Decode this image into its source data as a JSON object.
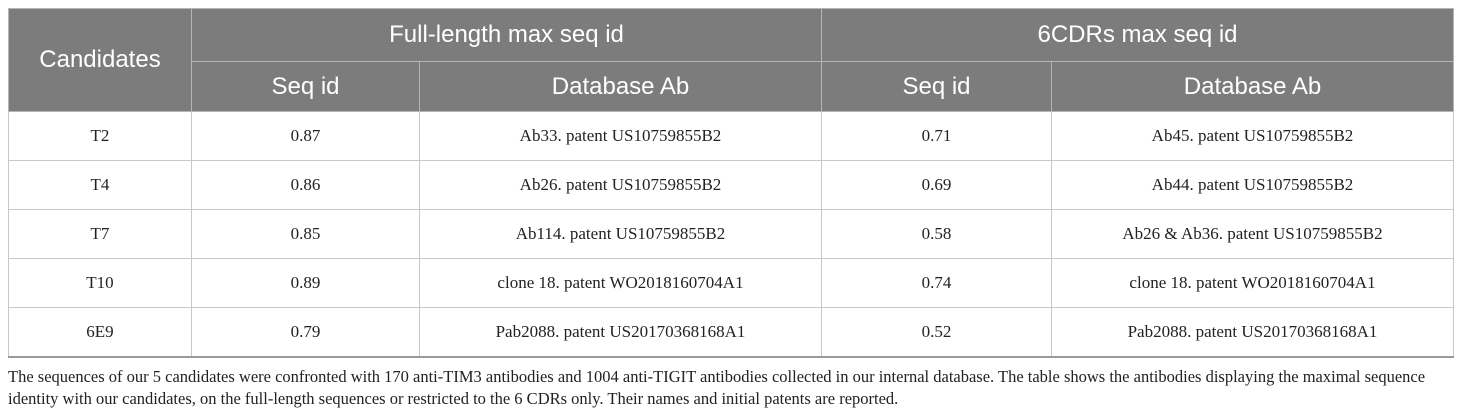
{
  "table": {
    "headers": {
      "candidates": "Candidates",
      "full_length": "Full-length max seq id",
      "six_cdrs": "6CDRs max seq id",
      "seq_id_1": "Seq id",
      "database_ab_1": "Database Ab",
      "seq_id_2": "Seq id",
      "database_ab_2": "Database Ab"
    },
    "rows": [
      {
        "candidate": "T2",
        "fl_seq_id": "0.87",
        "fl_db_ab": "Ab33. patent US10759855B2",
        "cdr_seq_id": "0.71",
        "cdr_db_ab": "Ab45. patent US10759855B2"
      },
      {
        "candidate": "T4",
        "fl_seq_id": "0.86",
        "fl_db_ab": "Ab26. patent US10759855B2",
        "cdr_seq_id": "0.69",
        "cdr_db_ab": "Ab44. patent US10759855B2"
      },
      {
        "candidate": "T7",
        "fl_seq_id": "0.85",
        "fl_db_ab": "Ab114. patent US10759855B2",
        "cdr_seq_id": "0.58",
        "cdr_db_ab": "Ab26 & Ab36. patent US10759855B2"
      },
      {
        "candidate": "T10",
        "fl_seq_id": "0.89",
        "fl_db_ab": "clone 18. patent WO2018160704A1",
        "cdr_seq_id": "0.74",
        "cdr_db_ab": "clone 18. patent WO2018160704A1"
      },
      {
        "candidate": "6E9",
        "fl_seq_id": "0.79",
        "fl_db_ab": "Pab2088. patent US20170368168A1",
        "cdr_seq_id": "0.52",
        "cdr_db_ab": "Pab2088. patent US20170368168A1"
      }
    ]
  },
  "caption": "The sequences of our 5 candidates were confronted with 170 anti-TIM3 antibodies and 1004 anti-TIGIT antibodies collected in our internal database. The table shows the antibodies displaying the maximal sequence identity with our candidates, on the full-length sequences or restricted to the 6 CDRs only. Their names and initial patents are reported."
}
